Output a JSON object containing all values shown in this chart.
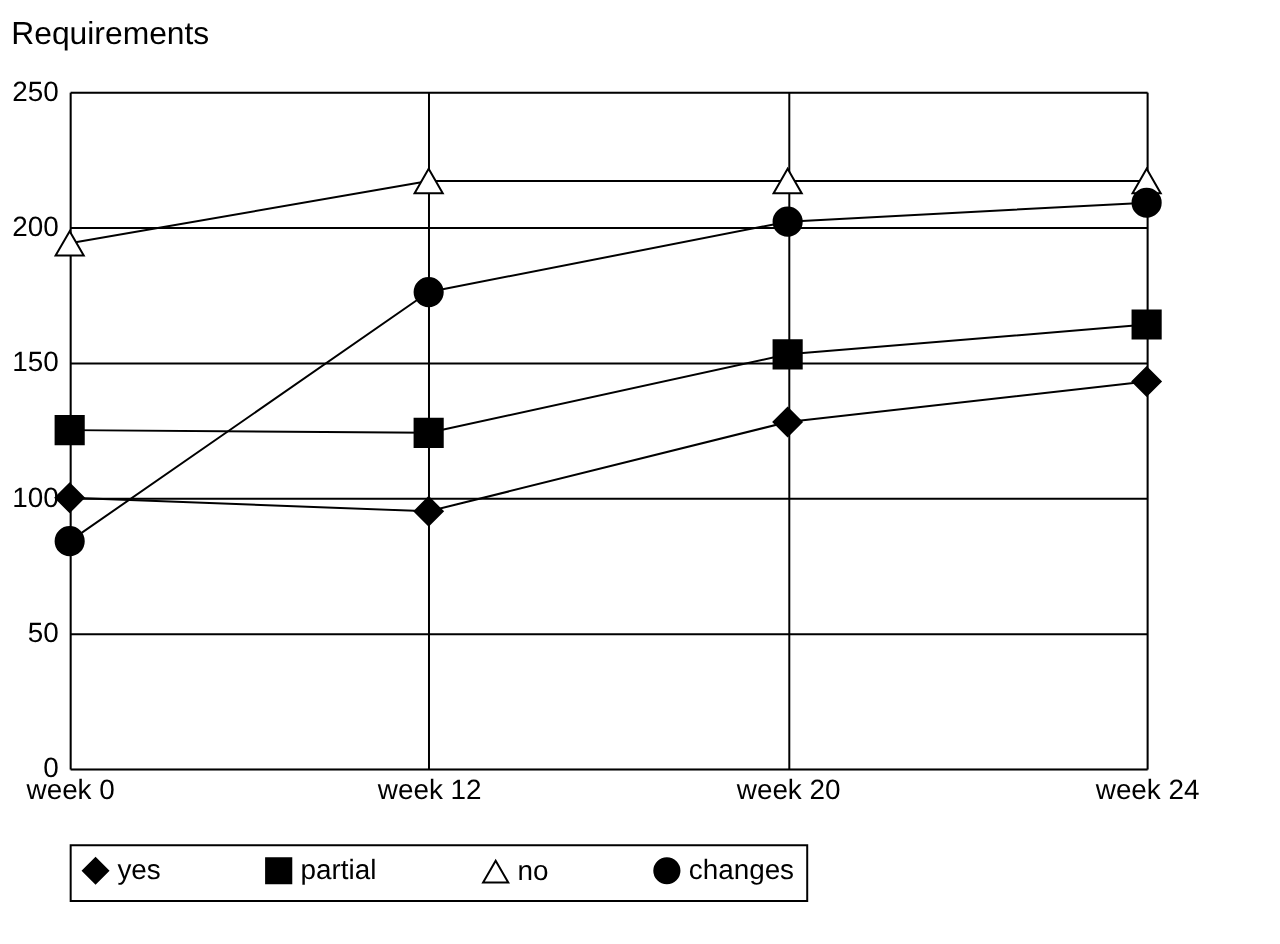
{
  "chart_data": {
    "type": "line",
    "title": "Requirements",
    "categories": [
      "week 0",
      "week 12",
      "week 20",
      "week 24"
    ],
    "series": [
      {
        "name": "yes",
        "color": "#000000",
        "marker": "diamond",
        "values": [
          100,
          95,
          128,
          143
        ]
      },
      {
        "name": "partial",
        "color": "#000000",
        "marker": "square",
        "values": [
          125,
          124,
          153,
          164
        ]
      },
      {
        "name": "no",
        "color": "#000000",
        "marker": "triangle",
        "values": [
          194,
          217,
          217,
          217
        ]
      },
      {
        "name": "changes",
        "color": "#000000",
        "marker": "circle",
        "values": [
          84,
          176,
          202,
          209
        ]
      }
    ],
    "ylim": [
      0,
      250
    ],
    "yticks": [
      0,
      50,
      100,
      150,
      200,
      250
    ],
    "grid": true,
    "legend": "bottom",
    "line_style": "solid"
  }
}
